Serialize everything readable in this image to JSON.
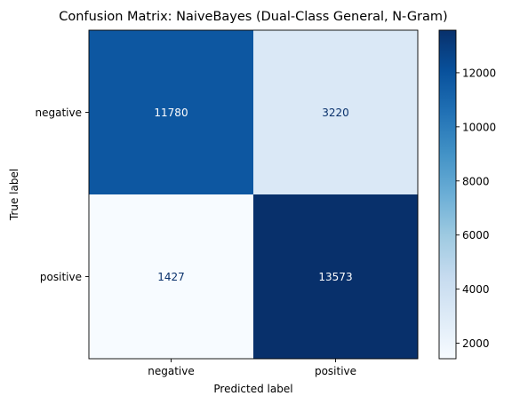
{
  "chart_data": {
    "type": "heatmap",
    "title": "Confusion Matrix: NaiveBayes (Dual-Class General, N-Gram)",
    "xlabel": "Predicted label",
    "ylabel": "True label",
    "x_categories": [
      "negative",
      "positive"
    ],
    "y_categories": [
      "negative",
      "positive"
    ],
    "values": [
      [
        11780,
        3220
      ],
      [
        1427,
        13573
      ]
    ],
    "cell_labels": [
      [
        "11780",
        "3220"
      ],
      [
        "1427",
        "13573"
      ]
    ],
    "colormap": "Blues",
    "colorbar": {
      "range": [
        1427,
        13573
      ],
      "ticks": [
        2000,
        4000,
        6000,
        8000,
        10000,
        12000
      ],
      "tick_labels": [
        "2000",
        "4000",
        "6000",
        "8000",
        "10000",
        "12000"
      ]
    },
    "grid": false
  }
}
